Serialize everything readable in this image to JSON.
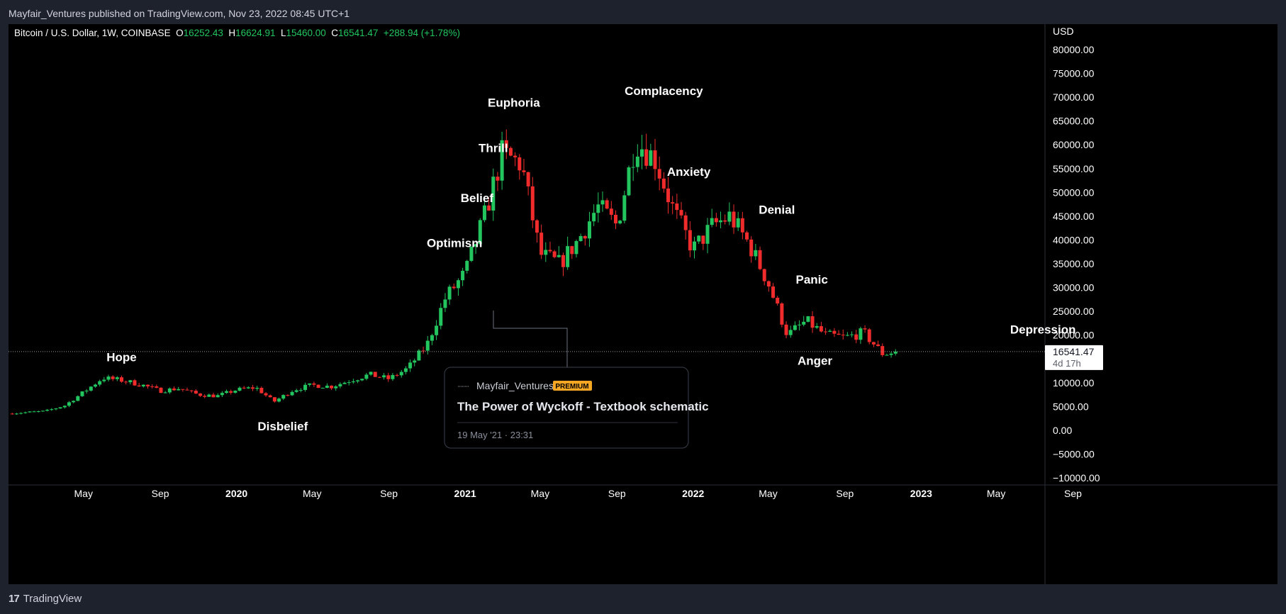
{
  "publish_line": "Mayfair_Ventures published on TradingView.com, Nov 23, 2022 08:45 UTC+1",
  "footer": {
    "logo": "17",
    "brand": "TradingView"
  },
  "legend": {
    "symbol": "Bitcoin / U.S. Dollar, 1W, COINBASE",
    "o_label": "O",
    "o_value": "16252.43",
    "h_label": "H",
    "h_value": "16624.91",
    "l_label": "L",
    "l_value": "15460.00",
    "c_label": "C",
    "c_value": "16541.47",
    "change": "+288.94 (+1.78%)"
  },
  "currency": "USD",
  "price_tag": {
    "price": "16541.47",
    "countdown": "4d 17h"
  },
  "idea_card": {
    "username": "Mayfair_Ventures",
    "badge": "PREMIUM",
    "title": "The Power of Wyckoff - Textbook schematic",
    "date": "19 May '21 · 23:31"
  },
  "colors": {
    "up": "#22c55e",
    "down": "#ef2b2b",
    "background": "#000000",
    "frame": "#1e222d"
  },
  "chart_data": {
    "type": "candlestick",
    "yaxis": {
      "min": -10000,
      "max": 80000,
      "step": 5000,
      "ticks": [
        "80000.00",
        "75000.00",
        "70000.00",
        "65000.00",
        "60000.00",
        "55000.00",
        "50000.00",
        "45000.00",
        "40000.00",
        "35000.00",
        "30000.00",
        "25000.00",
        "20000.00",
        "",
        "10000.00",
        "5000.00",
        "0.00",
        "−5000.00",
        "−10000.00"
      ]
    },
    "xaxis": {
      "ticks": [
        {
          "label": "May",
          "date": "2019-05-01",
          "bold": false
        },
        {
          "label": "Sep",
          "date": "2019-09-01",
          "bold": false
        },
        {
          "label": "2020",
          "date": "2020-01-01",
          "bold": true
        },
        {
          "label": "May",
          "date": "2020-05-01",
          "bold": false
        },
        {
          "label": "Sep",
          "date": "2020-09-01",
          "bold": false
        },
        {
          "label": "2021",
          "date": "2021-01-01",
          "bold": true
        },
        {
          "label": "May",
          "date": "2021-05-01",
          "bold": false
        },
        {
          "label": "Sep",
          "date": "2021-09-01",
          "bold": false
        },
        {
          "label": "2022",
          "date": "2022-01-01",
          "bold": true
        },
        {
          "label": "May",
          "date": "2022-05-01",
          "bold": false
        },
        {
          "label": "Sep",
          "date": "2022-09-01",
          "bold": false
        },
        {
          "label": "2023",
          "date": "2023-01-01",
          "bold": true
        },
        {
          "label": "May",
          "date": "2023-05-01",
          "bold": false
        },
        {
          "label": "Sep",
          "date": "2023-09-01",
          "bold": false
        }
      ]
    },
    "last_price": 16541.47,
    "close_series": {
      "dates": [
        "2019-01-01",
        "2019-02-01",
        "2019-03-01",
        "2019-04-01",
        "2019-05-01",
        "2019-06-01",
        "2019-07-01",
        "2019-08-01",
        "2019-09-01",
        "2019-10-01",
        "2019-11-01",
        "2019-12-01",
        "2020-01-01",
        "2020-02-01",
        "2020-03-01",
        "2020-04-01",
        "2020-05-01",
        "2020-06-01",
        "2020-07-01",
        "2020-08-01",
        "2020-09-01",
        "2020-10-01",
        "2020-11-01",
        "2020-12-01",
        "2021-01-01",
        "2021-02-01",
        "2021-03-01",
        "2021-04-01",
        "2021-05-01",
        "2021-06-01",
        "2021-07-01",
        "2021-08-01",
        "2021-09-01",
        "2021-10-01",
        "2021-11-01",
        "2021-12-01",
        "2022-01-01",
        "2022-02-01",
        "2022-03-01",
        "2022-04-01",
        "2022-05-01",
        "2022-06-01",
        "2022-07-01",
        "2022-08-01",
        "2022-09-01",
        "2022-10-01",
        "2022-11-01",
        "2022-11-21"
      ],
      "closes": [
        3500,
        3800,
        4000,
        5200,
        8000,
        11000,
        10500,
        9600,
        8300,
        8800,
        7500,
        7200,
        8500,
        9000,
        6000,
        8500,
        9500,
        9200,
        10500,
        11700,
        10800,
        13000,
        18000,
        28000,
        33000,
        45000,
        58000,
        56000,
        37000,
        35000,
        40000,
        47000,
        43000,
        61000,
        57000,
        46000,
        38000,
        43000,
        45000,
        39000,
        31000,
        20000,
        23000,
        20000,
        19500,
        20500,
        16000,
        16541
      ]
    },
    "phases": [
      {
        "label": "Hope",
        "date": "2019-07-01",
        "price": 14500
      },
      {
        "label": "Disbelief",
        "date": "2020-03-15",
        "price": 0
      },
      {
        "label": "Optimism",
        "date": "2020-12-15",
        "price": 38500
      },
      {
        "label": "Belief",
        "date": "2021-01-20",
        "price": 48000
      },
      {
        "label": "Thrill",
        "date": "2021-02-15",
        "price": 58500
      },
      {
        "label": "Euphoria",
        "date": "2021-03-20",
        "price": 68000
      },
      {
        "label": "Complacency",
        "date": "2021-11-15",
        "price": 70500
      },
      {
        "label": "Anxiety",
        "date": "2021-12-25",
        "price": 53500
      },
      {
        "label": "Denial",
        "date": "2022-05-15",
        "price": 45500
      },
      {
        "label": "Panic",
        "date": "2022-07-10",
        "price": 30800
      },
      {
        "label": "Anger",
        "date": "2022-07-15",
        "price": 13800
      },
      {
        "label": "Depression",
        "date": "2023-07-15",
        "price": 20300
      }
    ]
  }
}
